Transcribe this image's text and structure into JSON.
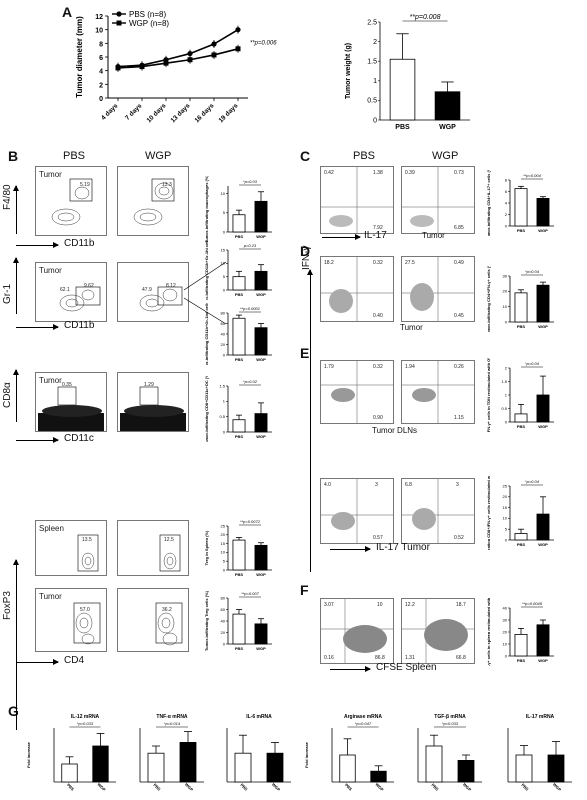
{
  "figure": {
    "panels": {
      "A": "A",
      "B": "B",
      "C": "C",
      "D": "D",
      "E": "E",
      "F": "F",
      "G": "G"
    },
    "group_headers": {
      "pbs": "PBS",
      "wgp": "WGP"
    },
    "tissue_labels": {
      "tumor": "Tumor",
      "spleen": "Spleen",
      "tumor_dlns": "Tumor DLNs",
      "il17_tumor": "IL-17 Tumor",
      "cfse_spleen": "CFSE   Spleen"
    },
    "axis_labels": {
      "f480": "F4/80",
      "cd11b": "CD11b",
      "gr1": "Gr-1",
      "cd8a": "CD8α",
      "cd11c": "CD11c",
      "foxp3": "FoxP3",
      "cd4": "CD4",
      "il17": "IL-17",
      "ifng": "IFN-γ",
      "cfse": "CFSE"
    },
    "gate_percents": {
      "b1_pbs": "5.19",
      "b1_wgp": "13.3",
      "b2_pbs_a": "62.1",
      "b2_pbs_b": "9.62",
      "b2_wgp_a": "47.9",
      "b2_wgp_b": "8.12",
      "b3_pbs": "0.35",
      "b3_wgp": "1.29",
      "b4_pbs": "13.5",
      "b4_wgp": "12.5",
      "b5_pbs": "57.0",
      "b5_wgp": "36.2",
      "c_pbs": [
        "0.42",
        "1.38",
        "7.92"
      ],
      "c_wgp": [
        "0.39",
        "0.73",
        "6.85"
      ],
      "d_pbs": [
        "18.2",
        "0.32",
        "0.40"
      ],
      "d_wgp": [
        "27.5",
        "0.49",
        "0.45"
      ],
      "e1_pbs": [
        "1.79",
        "0.32",
        "0.90"
      ],
      "e1_wgp": [
        "1.94",
        "0.26",
        "1.15"
      ],
      "e2_pbs": [
        "4.0",
        "3",
        "0.57"
      ],
      "e2_wgp": [
        "6.8",
        "3",
        "0.52"
      ],
      "f_pbs": [
        "3.07",
        "10",
        "0.16",
        "86.8"
      ],
      "f_wgp": [
        "12.2",
        "18.7",
        "1.31",
        "66.8"
      ]
    }
  },
  "chart_data": [
    {
      "id": "A-line",
      "type": "line",
      "categories": [
        "4 days",
        "7 days",
        "10 days",
        "13 days",
        "16 days",
        "19 days"
      ],
      "series": [
        {
          "name": "PBS (n=8)",
          "values": [
            4.6,
            4.8,
            5.6,
            6.5,
            7.9,
            10.0
          ]
        },
        {
          "name": "WGP (n=8)",
          "values": [
            4.4,
            4.6,
            5.1,
            5.6,
            6.3,
            7.2
          ]
        }
      ],
      "ylabel": "Tumor diameter (mm)",
      "ylim": [
        0,
        12
      ],
      "yticks": [
        0,
        2,
        4,
        6,
        8,
        10,
        12
      ],
      "annotation": "**p=0.006"
    },
    {
      "id": "A-bar",
      "type": "bar",
      "categories": [
        "PBS",
        "WGP"
      ],
      "values": [
        1.55,
        0.72
      ],
      "errors": [
        0.65,
        0.25
      ],
      "ylabel": "Tumor weight (g)",
      "ylim": [
        0,
        2.5
      ],
      "yticks": [
        0,
        0.5,
        1.0,
        1.5,
        2.0,
        2.5
      ],
      "annotation": "**p=0.008"
    },
    {
      "id": "B1",
      "type": "bar",
      "categories": [
        "PBS",
        "WGP"
      ],
      "values": [
        4.5,
        8
      ],
      "errors": [
        1.2,
        2.5
      ],
      "ylabel": "Tumor-infiltrating macrophages (%)",
      "ylim": [
        0,
        12
      ],
      "yticks": [
        0,
        5,
        10
      ],
      "annotation": "*p=0.03"
    },
    {
      "id": "B2a",
      "type": "bar",
      "categories": [
        "PBS",
        "WGP"
      ],
      "values": [
        5,
        7
      ],
      "errors": [
        2,
        2.5
      ],
      "ylabel": "Tumor-infiltrating CD11b+Gr-1hi cells (%)",
      "ylim": [
        0,
        15
      ],
      "yticks": [
        0,
        5,
        10,
        15
      ],
      "annotation": "p=0.23"
    },
    {
      "id": "B2b",
      "type": "bar",
      "categories": [
        "PBS",
        "WGP"
      ],
      "values": [
        70,
        52
      ],
      "errors": [
        6,
        8
      ],
      "ylabel": "Tumor-infiltrating CD11b+Gr-1int cells (%)",
      "ylim": [
        0,
        80
      ],
      "yticks": [
        0,
        20,
        40,
        60,
        80
      ],
      "annotation": "**p=0.0001"
    },
    {
      "id": "B3",
      "type": "bar",
      "categories": [
        "PBS",
        "WGP"
      ],
      "values": [
        0.4,
        0.6
      ],
      "errors": [
        0.15,
        0.35
      ],
      "ylabel": "Tumor-infiltrating CD8+CD11c+DC (%)",
      "ylim": [
        0,
        1.5
      ],
      "yticks": [
        0,
        0.5,
        1.0,
        1.5
      ],
      "annotation": "*p=0.02"
    },
    {
      "id": "B4",
      "type": "bar",
      "categories": [
        "PBS",
        "WGP"
      ],
      "values": [
        17,
        14
      ],
      "errors": [
        1.5,
        1.5
      ],
      "ylabel": "Treg in Spleen (%)",
      "ylim": [
        0,
        25
      ],
      "yticks": [
        0,
        5,
        10,
        15,
        20,
        25
      ],
      "annotation": "**p=0.0072"
    },
    {
      "id": "B5",
      "type": "bar",
      "categories": [
        "PBS",
        "WGP"
      ],
      "values": [
        52,
        35
      ],
      "errors": [
        8,
        9
      ],
      "ylabel": "Tumor-infiltrating Treg cells (%)",
      "ylim": [
        0,
        80
      ],
      "yticks": [
        0,
        20,
        40,
        60,
        80
      ],
      "annotation": "**p=0.007"
    },
    {
      "id": "C",
      "type": "bar",
      "categories": [
        "PBS",
        "WGP"
      ],
      "values": [
        6.5,
        4.8
      ],
      "errors": [
        0.4,
        0.3
      ],
      "ylabel": "Tumor-infiltrating CD4+IL-17+ cells (%)",
      "ylim": [
        0,
        8
      ],
      "yticks": [
        0,
        2,
        4,
        6,
        8
      ],
      "annotation": "**p=0.004"
    },
    {
      "id": "D",
      "type": "bar",
      "categories": [
        "PBS",
        "WGP"
      ],
      "values": [
        19,
        24
      ],
      "errors": [
        2,
        2
      ],
      "ylabel": "Tumor-infiltrating CD4+IFN-γ+ cells (%)",
      "ylim": [
        0,
        30
      ],
      "yticks": [
        0,
        10,
        20,
        30
      ],
      "annotation": "*p=0.04"
    },
    {
      "id": "E1",
      "type": "bar",
      "categories": [
        "PBS",
        "WGP"
      ],
      "values": [
        0.3,
        1.0
      ],
      "errors": [
        0.35,
        0.7
      ],
      "ylabel": "CD4+IFN-γ+ cells in TDN restimulated with OVA (%)",
      "ylim": [
        0,
        2
      ],
      "yticks": [
        0,
        0.5,
        1.0,
        1.5,
        2.0
      ],
      "annotation": "*p=0.04"
    },
    {
      "id": "E2",
      "type": "bar",
      "categories": [
        "PBS",
        "WGP"
      ],
      "values": [
        3,
        12
      ],
      "errors": [
        2,
        8
      ],
      "ylabel": "Tumor infiltration CD8+IFN-γ+ cells restimulated with OVA (%)",
      "ylim": [
        0,
        25
      ],
      "yticks": [
        0,
        5,
        10,
        15,
        20,
        25
      ],
      "annotation": "*p=0.04"
    },
    {
      "id": "F",
      "type": "bar",
      "categories": [
        "PBS",
        "WGP"
      ],
      "values": [
        18,
        26
      ],
      "errors": [
        5,
        4
      ],
      "ylabel": "CD8+IFN-γ+ cells in spleen restimulated with OVA (%)",
      "ylim": [
        0,
        40
      ],
      "yticks": [
        0,
        10,
        20,
        30,
        40
      ],
      "annotation": "**p=0.0045"
    },
    {
      "id": "G-IL12",
      "type": "bar",
      "categories": [
        "PBS",
        "WGP"
      ],
      "values": [
        1.0,
        2.0
      ],
      "errors": [
        0.4,
        0.7
      ],
      "title": "IL-12 mRNA",
      "ylabel": "Fold Increase",
      "ylim": [
        0,
        3
      ],
      "annotation": "*p=0.033"
    },
    {
      "id": "G-TNFa",
      "type": "bar",
      "categories": [
        "PBS",
        "WGP"
      ],
      "values": [
        1.6,
        2.2
      ],
      "errors": [
        0.4,
        0.6
      ],
      "title": "TNF-α mRNA",
      "ylim": [
        0,
        3
      ],
      "annotation": "*p=0.014"
    },
    {
      "id": "G-IL6",
      "type": "bar",
      "categories": [
        "PBS",
        "WGP"
      ],
      "values": [
        1.6,
        1.6
      ],
      "errors": [
        1.0,
        0.6
      ],
      "title": "IL-6 mRNA",
      "ylim": [
        0,
        3
      ]
    },
    {
      "id": "G-Arginase",
      "type": "bar",
      "categories": [
        "PBS",
        "WGP"
      ],
      "values": [
        1.0,
        0.4
      ],
      "errors": [
        0.6,
        0.2
      ],
      "title": "Arginase mRNA",
      "ylabel": "Fold Increase",
      "ylim": [
        0,
        2
      ],
      "annotation": "*p=0.047"
    },
    {
      "id": "G-TGFb",
      "type": "bar",
      "categories": [
        "PBS",
        "WGP"
      ],
      "values": [
        1.0,
        0.6
      ],
      "errors": [
        0.3,
        0.15
      ],
      "title": "TGF-β mRNA",
      "ylim": [
        0,
        1.5
      ],
      "annotation": "*p=0.033"
    },
    {
      "id": "G-IL17",
      "type": "bar",
      "categories": [
        "PBS",
        "WGP"
      ],
      "values": [
        1.0,
        1.0
      ],
      "errors": [
        0.35,
        0.5
      ],
      "title": "IL-17 mRNA",
      "ylim": [
        0,
        2
      ]
    }
  ]
}
